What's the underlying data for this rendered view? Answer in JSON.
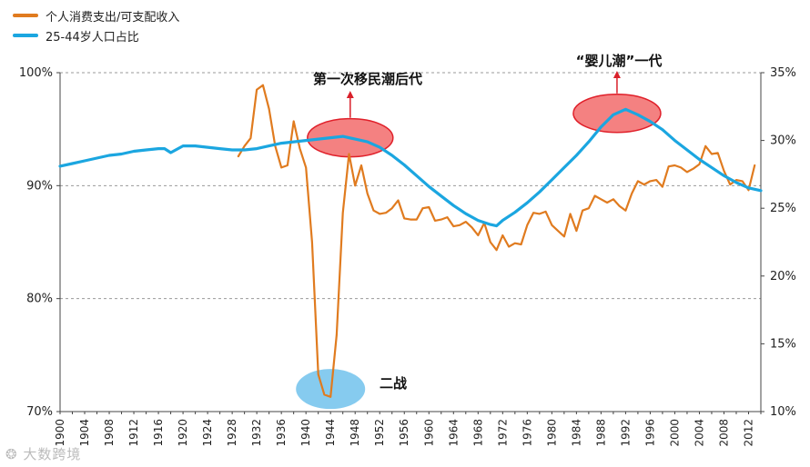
{
  "colors": {
    "consumption": "#E07B1F",
    "population": "#1BA6E0",
    "bubble_red": "#F26B6B",
    "bubble_red_edge": "#E0202A",
    "bubble_blue": "#7FC8EE",
    "arrow": "#D9202A",
    "grid": "#9a9a9a"
  },
  "legend": {
    "consumption_label": "个人消费支出/可支配收入",
    "population_label": "25-44岁人口占比"
  },
  "annotations": {
    "boomer_echo": "第一次移民潮后代",
    "baby_boom": "“婴儿潮”一代",
    "wwii": "二战"
  },
  "watermark": "大数跨境",
  "chart_data": {
    "type": "line",
    "x_ticks": [
      1900,
      1904,
      1908,
      1912,
      1916,
      1920,
      1924,
      1928,
      1932,
      1936,
      1940,
      1944,
      1948,
      1952,
      1956,
      1960,
      1964,
      1968,
      1972,
      1976,
      1980,
      1984,
      1988,
      1992,
      1996,
      2000,
      2004,
      2008,
      2012
    ],
    "xlim": [
      1900,
      2014
    ],
    "left_axis": {
      "ylim": [
        70,
        100
      ],
      "ticks": [
        70,
        80,
        90,
        100
      ],
      "tick_labels": [
        "70%",
        "80%",
        "90%",
        "100%"
      ]
    },
    "right_axis": {
      "ylim": [
        10,
        35
      ],
      "ticks": [
        10,
        15,
        20,
        25,
        30,
        35
      ],
      "tick_labels": [
        "10%",
        "15%",
        "20%",
        "25%",
        "30%",
        "35%"
      ]
    },
    "series": [
      {
        "name": "个人消费支出/可支配收入",
        "axis": "left",
        "points": [
          [
            1929,
            92.6
          ],
          [
            1930,
            93.5
          ],
          [
            1931,
            94.2
          ],
          [
            1932,
            98.5
          ],
          [
            1933,
            98.9
          ],
          [
            1934,
            96.8
          ],
          [
            1935,
            93.5
          ],
          [
            1936,
            91.6
          ],
          [
            1937,
            91.8
          ],
          [
            1938,
            95.7
          ],
          [
            1939,
            93.3
          ],
          [
            1940,
            91.6
          ],
          [
            1941,
            85.0
          ],
          [
            1942,
            73.3
          ],
          [
            1943,
            71.5
          ],
          [
            1944,
            71.3
          ],
          [
            1945,
            76.8
          ],
          [
            1946,
            87.6
          ],
          [
            1947,
            92.8
          ],
          [
            1948,
            90.0
          ],
          [
            1949,
            91.8
          ],
          [
            1950,
            89.3
          ],
          [
            1951,
            87.8
          ],
          [
            1952,
            87.5
          ],
          [
            1953,
            87.6
          ],
          [
            1954,
            88.0
          ],
          [
            1955,
            88.7
          ],
          [
            1956,
            87.1
          ],
          [
            1957,
            87.0
          ],
          [
            1958,
            87.0
          ],
          [
            1959,
            88.0
          ],
          [
            1960,
            88.1
          ],
          [
            1961,
            86.9
          ],
          [
            1962,
            87.0
          ],
          [
            1963,
            87.2
          ],
          [
            1964,
            86.4
          ],
          [
            1965,
            86.5
          ],
          [
            1966,
            86.8
          ],
          [
            1967,
            86.3
          ],
          [
            1968,
            85.6
          ],
          [
            1969,
            86.7
          ],
          [
            1970,
            85.0
          ],
          [
            1971,
            84.3
          ],
          [
            1972,
            85.6
          ],
          [
            1973,
            84.6
          ],
          [
            1974,
            84.9
          ],
          [
            1975,
            84.8
          ],
          [
            1976,
            86.5
          ],
          [
            1977,
            87.6
          ],
          [
            1978,
            87.5
          ],
          [
            1979,
            87.7
          ],
          [
            1980,
            86.5
          ],
          [
            1981,
            86.0
          ],
          [
            1982,
            85.5
          ],
          [
            1983,
            87.5
          ],
          [
            1984,
            86.0
          ],
          [
            1985,
            87.8
          ],
          [
            1986,
            88.0
          ],
          [
            1987,
            89.1
          ],
          [
            1988,
            88.8
          ],
          [
            1989,
            88.5
          ],
          [
            1990,
            88.8
          ],
          [
            1991,
            88.2
          ],
          [
            1992,
            87.8
          ],
          [
            1993,
            89.3
          ],
          [
            1994,
            90.4
          ],
          [
            1995,
            90.1
          ],
          [
            1996,
            90.4
          ],
          [
            1997,
            90.5
          ],
          [
            1998,
            89.9
          ],
          [
            1999,
            91.7
          ],
          [
            2000,
            91.8
          ],
          [
            2001,
            91.6
          ],
          [
            2002,
            91.2
          ],
          [
            2003,
            91.5
          ],
          [
            2004,
            91.9
          ],
          [
            2005,
            93.5
          ],
          [
            2006,
            92.8
          ],
          [
            2007,
            92.9
          ],
          [
            2008,
            91.3
          ],
          [
            2009,
            90.1
          ],
          [
            2010,
            90.5
          ],
          [
            2011,
            90.4
          ],
          [
            2012,
            89.6
          ],
          [
            2013,
            91.8
          ]
        ]
      },
      {
        "name": "25-44岁人口占比",
        "axis": "right",
        "points": [
          [
            1900,
            28.1
          ],
          [
            1902,
            28.3
          ],
          [
            1904,
            28.5
          ],
          [
            1906,
            28.7
          ],
          [
            1908,
            28.9
          ],
          [
            1910,
            29.0
          ],
          [
            1912,
            29.2
          ],
          [
            1914,
            29.3
          ],
          [
            1916,
            29.4
          ],
          [
            1917,
            29.4
          ],
          [
            1918,
            29.1
          ],
          [
            1920,
            29.6
          ],
          [
            1922,
            29.6
          ],
          [
            1924,
            29.5
          ],
          [
            1926,
            29.4
          ],
          [
            1928,
            29.3
          ],
          [
            1930,
            29.3
          ],
          [
            1932,
            29.4
          ],
          [
            1934,
            29.6
          ],
          [
            1936,
            29.8
          ],
          [
            1938,
            29.9
          ],
          [
            1940,
            30.0
          ],
          [
            1942,
            30.1
          ],
          [
            1944,
            30.2
          ],
          [
            1946,
            30.3
          ],
          [
            1948,
            30.1
          ],
          [
            1950,
            29.9
          ],
          [
            1952,
            29.5
          ],
          [
            1954,
            28.9
          ],
          [
            1956,
            28.2
          ],
          [
            1958,
            27.4
          ],
          [
            1960,
            26.6
          ],
          [
            1962,
            25.9
          ],
          [
            1964,
            25.2
          ],
          [
            1966,
            24.6
          ],
          [
            1968,
            24.1
          ],
          [
            1970,
            23.8
          ],
          [
            1971,
            23.7
          ],
          [
            1972,
            24.1
          ],
          [
            1974,
            24.7
          ],
          [
            1976,
            25.4
          ],
          [
            1978,
            26.2
          ],
          [
            1980,
            27.1
          ],
          [
            1982,
            28.0
          ],
          [
            1984,
            28.9
          ],
          [
            1986,
            29.9
          ],
          [
            1988,
            31.0
          ],
          [
            1990,
            31.9
          ],
          [
            1992,
            32.3
          ],
          [
            1994,
            31.9
          ],
          [
            1996,
            31.4
          ],
          [
            1998,
            30.8
          ],
          [
            2000,
            30.0
          ],
          [
            2002,
            29.3
          ],
          [
            2004,
            28.6
          ],
          [
            2006,
            28.0
          ],
          [
            2008,
            27.4
          ],
          [
            2010,
            26.9
          ],
          [
            2012,
            26.5
          ],
          [
            2014,
            26.3
          ]
        ]
      }
    ]
  }
}
